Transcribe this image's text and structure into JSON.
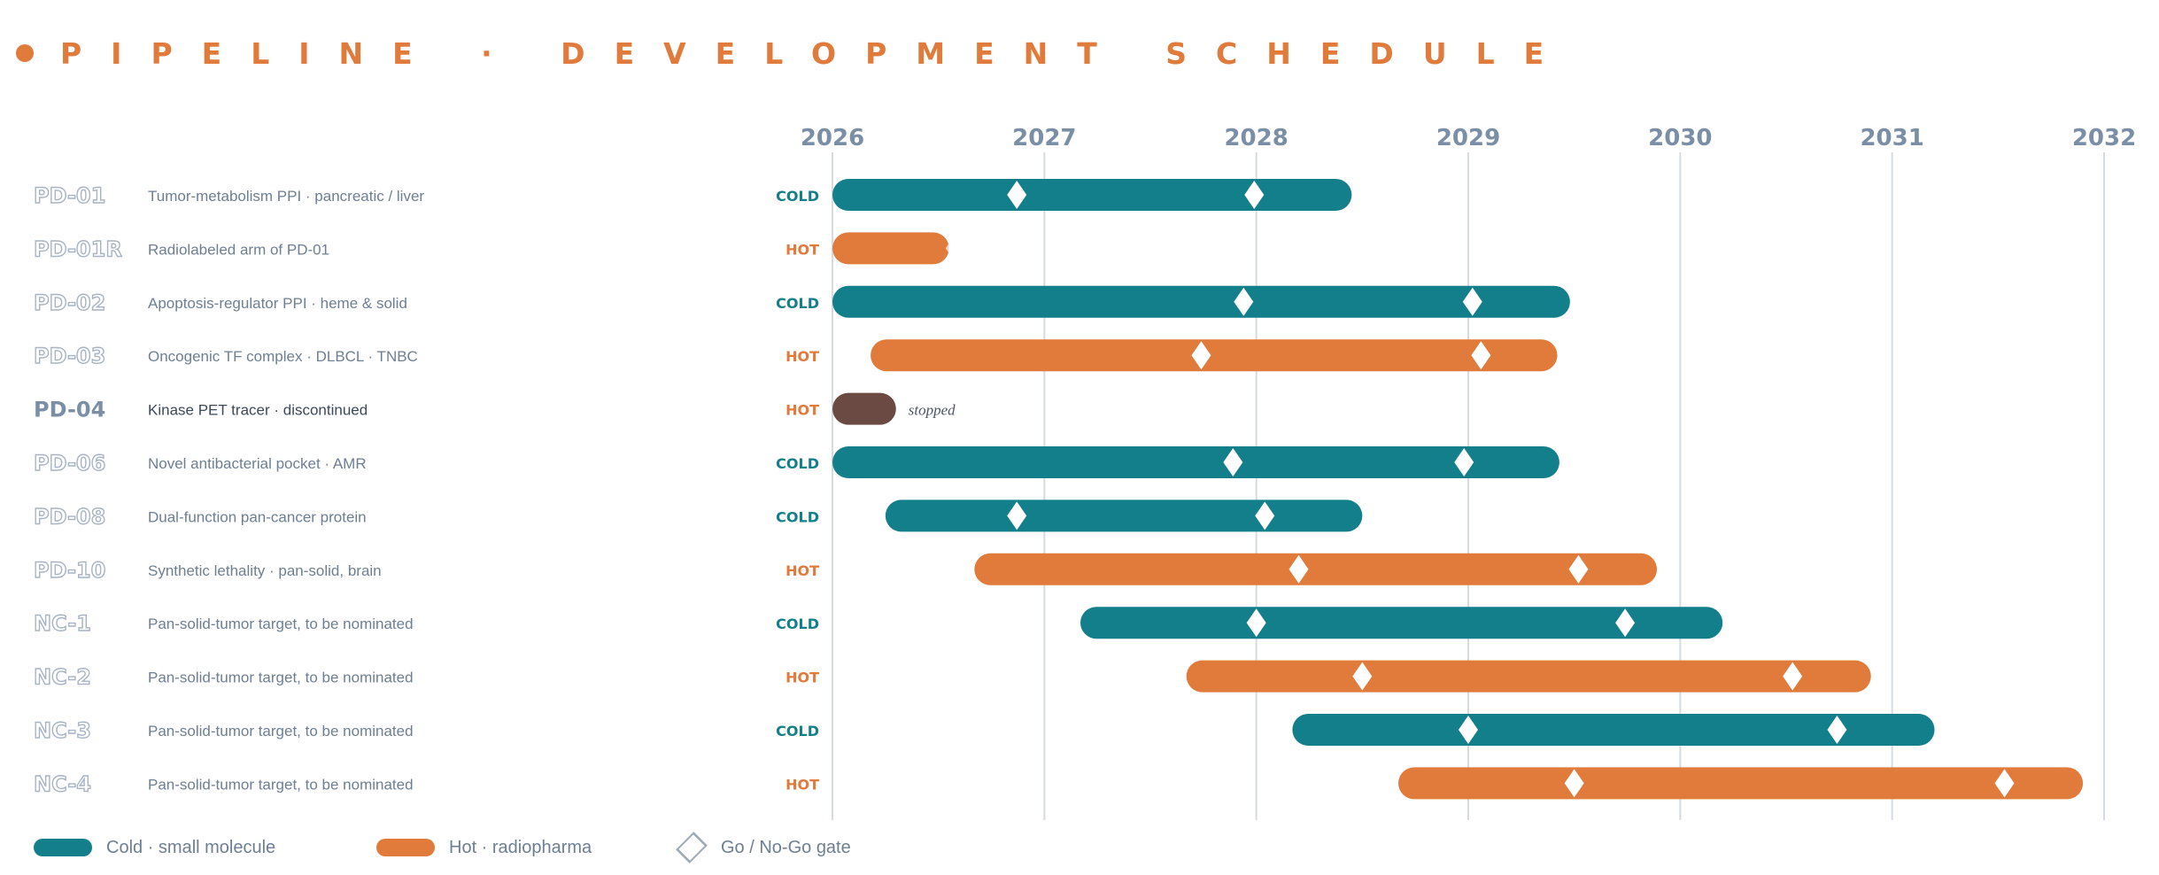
{
  "title": "PIPELINE · DEVELOPMENT SCHEDULE",
  "colors": {
    "cold": "#137F8B",
    "hot": "#E07B3C",
    "stopped": "#6B4A44",
    "id_text": "#A8B4C4",
    "desc_text": "#6E7F93",
    "axis_text": "#7A8EA5",
    "grid": "#D6DBE1"
  },
  "legend": {
    "cold_label": "Cold · small molecule",
    "hot_label": "Hot · radiopharma",
    "gate_label": "Go / No-Go gate"
  },
  "chart_data": {
    "type": "gantt",
    "x_axis": {
      "ticks": [
        "2026",
        "2027",
        "2028",
        "2029",
        "2030",
        "2031",
        "2032"
      ],
      "range": [
        2026,
        2032
      ]
    },
    "grid": true,
    "rows": [
      {
        "id": "PD-01",
        "description": "Tumor-metabolism PPI · pancreatic / liver",
        "modality": "COLD",
        "start": 2026.0,
        "end": 2028.45,
        "gates": [
          2026.87,
          2027.99
        ]
      },
      {
        "id": "PD-01R",
        "description": "Radiolabeled arm of PD-01",
        "modality": "HOT",
        "start": 2026.0,
        "end": 2026.55,
        "gates": [
          2026.58
        ],
        "gate_faded": true
      },
      {
        "id": "PD-02",
        "description": "Apoptosis-regulator PPI · heme & solid",
        "modality": "COLD",
        "start": 2026.0,
        "end": 2029.48,
        "gates": [
          2027.94,
          2029.02
        ]
      },
      {
        "id": "PD-03",
        "description": "Oncogenic TF complex · DLBCL · TNBC",
        "modality": "HOT",
        "start": 2026.18,
        "end": 2029.42,
        "gates": [
          2027.74,
          2029.06
        ]
      },
      {
        "id": "PD-04",
        "description": "Kinase PET tracer · discontinued",
        "modality": "HOT",
        "start": 2026.0,
        "end": 2026.3,
        "gates": [],
        "stopped": true,
        "note": "stopped"
      },
      {
        "id": "PD-06",
        "description": "Novel antibacterial pocket · AMR",
        "modality": "COLD",
        "start": 2026.0,
        "end": 2029.43,
        "gates": [
          2027.89,
          2028.98
        ]
      },
      {
        "id": "PD-08",
        "description": "Dual-function pan-cancer protein",
        "modality": "COLD",
        "start": 2026.25,
        "end": 2028.5,
        "gates": [
          2026.87,
          2028.04
        ]
      },
      {
        "id": "PD-10",
        "description": "Synthetic lethality · pan-solid, brain",
        "modality": "HOT",
        "start": 2026.67,
        "end": 2029.89,
        "gates": [
          2028.2,
          2029.52
        ]
      },
      {
        "id": "NC-1",
        "description": "Pan-solid-tumor target, to be nominated",
        "modality": "COLD",
        "start": 2027.17,
        "end": 2030.2,
        "gates": [
          2028.0,
          2029.74
        ]
      },
      {
        "id": "NC-2",
        "description": "Pan-solid-tumor target, to be nominated",
        "modality": "HOT",
        "start": 2027.67,
        "end": 2030.9,
        "gates": [
          2028.5,
          2030.53
        ]
      },
      {
        "id": "NC-3",
        "description": "Pan-solid-tumor target, to be nominated",
        "modality": "COLD",
        "start": 2028.17,
        "end": 2031.2,
        "gates": [
          2029.0,
          2030.74
        ]
      },
      {
        "id": "NC-4",
        "description": "Pan-solid-tumor target, to be nominated",
        "modality": "HOT",
        "start": 2028.67,
        "end": 2031.9,
        "gates": [
          2029.5,
          2031.53
        ]
      }
    ]
  }
}
